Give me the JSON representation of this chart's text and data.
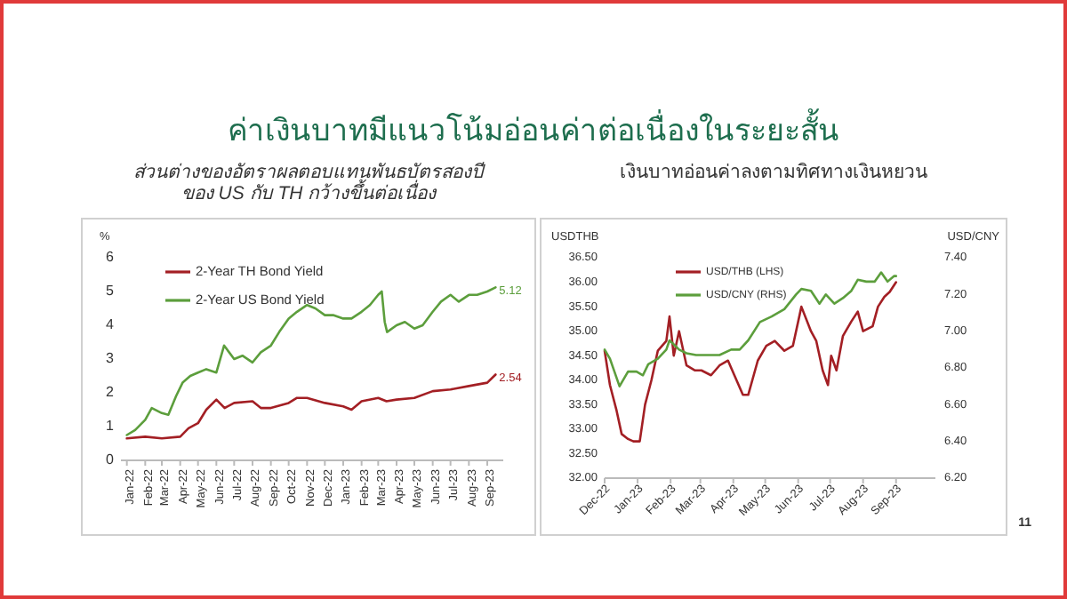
{
  "chart_data": [
    {
      "type": "line",
      "title": "ค่าเงินบาทมีแนวโน้มอ่อนค่าต่อเนื่องในระยะสั้น",
      "subtitle": "ส่วนต่างของอัตราผลตอบแทนพันธบัตรสองปี ของ US กับ TH กว้างขึ้นต่อเนื่อง",
      "ylabel": "%",
      "legend": "top left",
      "marker": "none",
      "line_style": "solid",
      "grid": false,
      "xlim": [
        "2021-12-22",
        "2023-09-28"
      ],
      "ylim": [
        0,
        6
      ],
      "yticks": [
        0,
        1,
        2,
        3,
        4,
        5,
        6
      ],
      "xticks": [
        {
          "value": "2022-01-01",
          "label": "Jan-22"
        },
        {
          "value": "2022-02-01",
          "label": "Feb-22"
        },
        {
          "value": "2022-03-01",
          "label": "Mar-22"
        },
        {
          "value": "2022-04-01",
          "label": "Apr-22"
        },
        {
          "value": "2022-05-01",
          "label": "May-22"
        },
        {
          "value": "2022-06-01",
          "label": "Jun-22"
        },
        {
          "value": "2022-07-01",
          "label": "Jul-22"
        },
        {
          "value": "2022-08-01",
          "label": "Aug-22"
        },
        {
          "value": "2022-09-01",
          "label": "Sep-22"
        },
        {
          "value": "2022-10-01",
          "label": "Oct-22"
        },
        {
          "value": "2022-11-01",
          "label": "Nov-22"
        },
        {
          "value": "2022-12-01",
          "label": "Dec-22"
        },
        {
          "value": "2023-01-01",
          "label": "Jan-23"
        },
        {
          "value": "2023-02-01",
          "label": "Feb-23"
        },
        {
          "value": "2023-03-01",
          "label": "Mar-23"
        },
        {
          "value": "2023-04-01",
          "label": "Apr-23"
        },
        {
          "value": "2023-05-01",
          "label": "May-23"
        },
        {
          "value": "2023-06-01",
          "label": "Jun-23"
        },
        {
          "value": "2023-07-01",
          "label": "Jul-23"
        },
        {
          "value": "2023-08-01",
          "label": "Aug-23"
        },
        {
          "value": "2023-09-01",
          "label": "Sep-23"
        }
      ],
      "series": [
        {
          "name": "2-Year TH Bond Yield",
          "color": "#a31f24",
          "x": [
            "2022-01-01",
            "2022-02-01",
            "2022-03-01",
            "2022-04-01",
            "2022-04-15",
            "2022-05-01",
            "2022-05-15",
            "2022-06-01",
            "2022-06-15",
            "2022-07-01",
            "2022-08-01",
            "2022-08-15",
            "2022-09-01",
            "2022-10-01",
            "2022-10-15",
            "2022-11-01",
            "2022-12-01",
            "2023-01-01",
            "2023-01-15",
            "2023-02-01",
            "2023-03-01",
            "2023-03-15",
            "2023-04-01",
            "2023-05-01",
            "2023-06-01",
            "2023-07-01",
            "2023-08-01",
            "2023-09-01",
            "2023-09-15"
          ],
          "values": [
            0.65,
            0.7,
            0.65,
            0.7,
            0.95,
            1.1,
            1.5,
            1.8,
            1.55,
            1.7,
            1.75,
            1.55,
            1.55,
            1.7,
            1.85,
            1.85,
            1.7,
            1.6,
            1.5,
            1.75,
            1.85,
            1.75,
            1.8,
            1.85,
            2.05,
            2.1,
            2.2,
            2.3,
            2.54
          ],
          "value_labels": [
            null,
            null,
            null,
            null,
            null,
            null,
            null,
            null,
            null,
            null,
            null,
            null,
            null,
            null,
            null,
            null,
            null,
            null,
            null,
            null,
            null,
            null,
            null,
            null,
            null,
            null,
            null,
            null,
            "2.54"
          ]
        },
        {
          "name": "2-Year US Bond Yield",
          "color": "#5c9e3c",
          "x": [
            "2022-01-01",
            "2022-01-15",
            "2022-02-01",
            "2022-02-12",
            "2022-03-01",
            "2022-03-12",
            "2022-03-25",
            "2022-04-05",
            "2022-04-18",
            "2022-05-01",
            "2022-05-15",
            "2022-06-01",
            "2022-06-14",
            "2022-07-01",
            "2022-07-15",
            "2022-08-01",
            "2022-08-15",
            "2022-09-01",
            "2022-09-15",
            "2022-10-01",
            "2022-10-15",
            "2022-11-01",
            "2022-11-15",
            "2022-12-01",
            "2022-12-15",
            "2023-01-01",
            "2023-01-15",
            "2023-02-01",
            "2023-02-15",
            "2023-03-01",
            "2023-03-07",
            "2023-03-12",
            "2023-03-16",
            "2023-04-01",
            "2023-04-15",
            "2023-05-01",
            "2023-05-15",
            "2023-06-01",
            "2023-06-15",
            "2023-07-01",
            "2023-07-15",
            "2023-08-01",
            "2023-08-15",
            "2023-09-01",
            "2023-09-15"
          ],
          "values": [
            0.75,
            0.9,
            1.2,
            1.55,
            1.4,
            1.35,
            1.9,
            2.3,
            2.5,
            2.6,
            2.7,
            2.6,
            3.4,
            3.0,
            3.1,
            2.9,
            3.2,
            3.4,
            3.8,
            4.2,
            4.4,
            4.6,
            4.5,
            4.3,
            4.3,
            4.2,
            4.2,
            4.4,
            4.6,
            4.9,
            5.0,
            4.1,
            3.8,
            4.0,
            4.1,
            3.9,
            4.0,
            4.4,
            4.7,
            4.9,
            4.7,
            4.9,
            4.9,
            5.0,
            5.12
          ],
          "value_labels": [
            null,
            null,
            null,
            null,
            null,
            null,
            null,
            null,
            null,
            null,
            null,
            null,
            null,
            null,
            null,
            null,
            null,
            null,
            null,
            null,
            null,
            null,
            null,
            null,
            null,
            null,
            null,
            null,
            null,
            null,
            null,
            null,
            null,
            null,
            null,
            null,
            null,
            null,
            null,
            null,
            null,
            null,
            null,
            null,
            "5.12"
          ]
        }
      ]
    },
    {
      "type": "line",
      "title": "เงินบาทอ่อนค่าลงตามทิศทางเงินหยวน",
      "ylabel": "USDTHB",
      "y2label": "USD/CNY",
      "legend": "top left",
      "marker": "none",
      "line_style": "solid",
      "grid": false,
      "annotations": [
        "11"
      ],
      "xlim": [
        "2022-12-01",
        "2023-10-08"
      ],
      "xticks": [
        {
          "value": "2022-12-01",
          "label": "Dec-22"
        },
        {
          "value": "2023-01-01",
          "label": "Jan-23"
        },
        {
          "value": "2023-02-01",
          "label": "Feb-23"
        },
        {
          "value": "2023-03-01",
          "label": "Mar-23"
        },
        {
          "value": "2023-04-01",
          "label": "Apr-23"
        },
        {
          "value": "2023-05-01",
          "label": "May-23"
        },
        {
          "value": "2023-06-01",
          "label": "Jun-23"
        },
        {
          "value": "2023-07-01",
          "label": "Jul-23"
        },
        {
          "value": "2023-08-01",
          "label": "Aug-23"
        },
        {
          "value": "2023-09-01",
          "label": "Sep-23"
        }
      ],
      "ylim": [
        32,
        36.5
      ],
      "yticks": [
        {
          "value": 32,
          "label": "32.00"
        },
        {
          "value": 32.5,
          "label": "32.50"
        },
        {
          "value": 33,
          "label": "33.00"
        },
        {
          "value": 33.5,
          "label": "33.50"
        },
        {
          "value": 34,
          "label": "34.00"
        },
        {
          "value": 34.5,
          "label": "34.50"
        },
        {
          "value": 35,
          "label": "35.00"
        },
        {
          "value": 35.5,
          "label": "35.50"
        },
        {
          "value": 36,
          "label": "36.00"
        },
        {
          "value": 36.5,
          "label": "36.50"
        }
      ],
      "y2lim": [
        6.2,
        7.4
      ],
      "y2ticks": [
        {
          "value": 6.2,
          "label": "6.20"
        },
        {
          "value": 6.4,
          "label": "6.40"
        },
        {
          "value": 6.6,
          "label": "6.60"
        },
        {
          "value": 6.8,
          "label": "6.80"
        },
        {
          "value": 7,
          "label": "7.00"
        },
        {
          "value": 7.2,
          "label": "7.20"
        },
        {
          "value": 7.4,
          "label": "7.40"
        }
      ],
      "series": [
        {
          "name": "USD/THB (LHS)",
          "color": "#a31f24",
          "x": [
            "2022-12-01",
            "2022-12-06",
            "2022-12-12",
            "2022-12-17",
            "2022-12-23",
            "2022-12-28",
            "2023-01-03",
            "2023-01-08",
            "2023-01-14",
            "2023-01-20",
            "2023-01-28",
            "2023-01-31",
            "2023-02-04",
            "2023-02-09",
            "2023-02-16",
            "2023-02-24",
            "2023-03-02",
            "2023-03-11",
            "2023-03-19",
            "2023-03-27",
            "2023-04-02",
            "2023-04-10",
            "2023-04-15",
            "2023-04-24",
            "2023-05-02",
            "2023-05-10",
            "2023-05-19",
            "2023-05-27",
            "2023-06-04",
            "2023-06-13",
            "2023-06-18",
            "2023-06-24",
            "2023-06-29",
            "2023-07-02",
            "2023-07-07",
            "2023-07-13",
            "2023-07-21",
            "2023-07-27",
            "2023-08-01",
            "2023-08-10",
            "2023-08-15",
            "2023-08-21",
            "2023-08-26",
            "2023-09-01"
          ],
          "values": [
            34.6,
            33.9,
            33.4,
            32.9,
            32.8,
            32.75,
            32.75,
            33.5,
            34.0,
            34.6,
            34.8,
            35.3,
            34.5,
            35.0,
            34.3,
            34.2,
            34.2,
            34.1,
            34.3,
            34.4,
            34.1,
            33.7,
            33.7,
            34.4,
            34.7,
            34.8,
            34.6,
            34.7,
            35.5,
            35.0,
            34.8,
            34.2,
            33.9,
            34.5,
            34.2,
            34.9,
            35.2,
            35.4,
            35.0,
            35.1,
            35.5,
            35.7,
            35.8,
            36.0
          ]
        },
        {
          "name": "USD/CNY (RHS)",
          "color": "#5c9e3c",
          "axis": "y2",
          "x": [
            "2022-12-01",
            "2022-12-06",
            "2022-12-15",
            "2022-12-23",
            "2022-12-31",
            "2023-01-06",
            "2023-01-11",
            "2023-01-20",
            "2023-01-28",
            "2023-01-31",
            "2023-02-09",
            "2023-02-16",
            "2023-02-25",
            "2023-03-08",
            "2023-03-19",
            "2023-03-30",
            "2023-04-07",
            "2023-04-15",
            "2023-04-26",
            "2023-05-07",
            "2023-05-19",
            "2023-05-30",
            "2023-06-04",
            "2023-06-13",
            "2023-06-21",
            "2023-06-27",
            "2023-07-05",
            "2023-07-13",
            "2023-07-21",
            "2023-07-27",
            "2023-08-04",
            "2023-08-12",
            "2023-08-18",
            "2023-08-24",
            "2023-08-30",
            "2023-09-01"
          ],
          "values": [
            6.9,
            6.85,
            6.7,
            6.78,
            6.78,
            6.76,
            6.82,
            6.85,
            6.9,
            6.95,
            6.9,
            6.88,
            6.87,
            6.87,
            6.87,
            6.9,
            6.9,
            6.95,
            7.05,
            7.08,
            7.12,
            7.2,
            7.23,
            7.22,
            7.15,
            7.2,
            7.15,
            7.18,
            7.22,
            7.28,
            7.27,
            7.27,
            7.32,
            7.27,
            7.3,
            7.3
          ]
        }
      ]
    }
  ]
}
